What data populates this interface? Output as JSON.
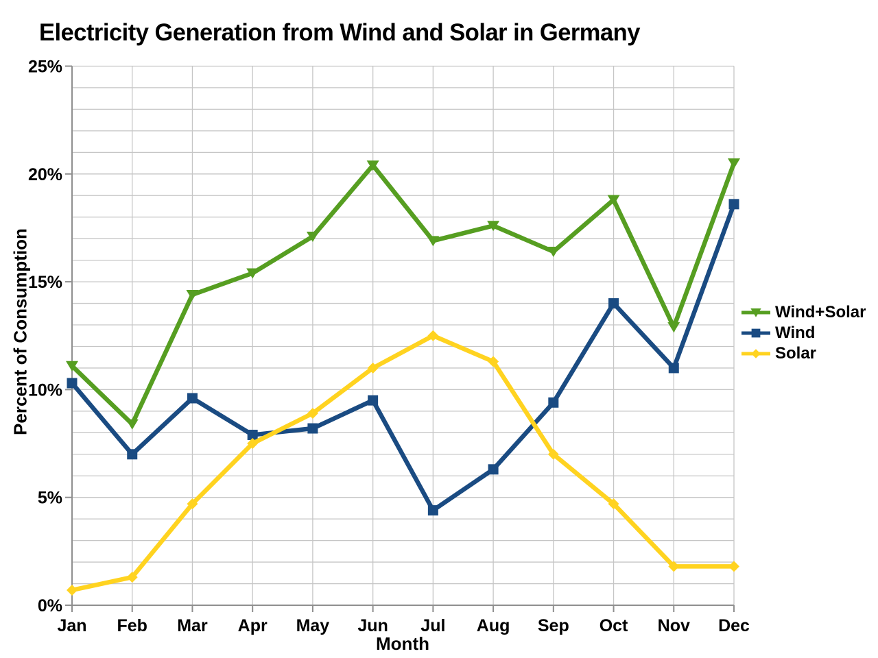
{
  "title": "Electricity Generation from Wind and Solar in Germany",
  "colors": {
    "wind_solar_green": "#569E21",
    "wind_blue": "#1A4B82",
    "solar_yellow": "#FFD320",
    "gridline": "#C6C6C6",
    "axis": "#8F8F8F",
    "text": "#000000",
    "background": "#FFFFFF"
  },
  "chart_data": {
    "type": "line",
    "title": "Electricity Generation from Wind and Solar in Germany",
    "xlabel": "Month",
    "ylabel": "Percent of Consumption",
    "categories": [
      "Jan",
      "Feb",
      "Mar",
      "Apr",
      "May",
      "Jun",
      "Jul",
      "Aug",
      "Sep",
      "Oct",
      "Nov",
      "Dec"
    ],
    "y_tick_labels": [
      "0%",
      "5%",
      "10%",
      "15%",
      "20%",
      "25%"
    ],
    "y_tick_values": [
      0,
      5,
      10,
      15,
      20,
      25
    ],
    "ylim": [
      0,
      25
    ],
    "grid": {
      "horizontal_minor_step_percent": 1,
      "vertical_per_month": true,
      "on": true
    },
    "legend_position": "right",
    "series": [
      {
        "name": "Wind+Solar",
        "color": "#569E21",
        "marker": "triangle-down",
        "values": [
          11.1,
          8.4,
          14.4,
          15.4,
          17.1,
          20.4,
          16.9,
          17.6,
          16.4,
          18.8,
          12.9,
          20.5
        ]
      },
      {
        "name": "Wind",
        "color": "#1A4B82",
        "marker": "square",
        "values": [
          10.3,
          7.0,
          9.6,
          7.9,
          8.2,
          9.5,
          4.4,
          6.3,
          9.4,
          14.0,
          11.0,
          18.6
        ]
      },
      {
        "name": "Solar",
        "color": "#FFD320",
        "marker": "diamond",
        "values": [
          0.7,
          1.3,
          4.7,
          7.5,
          8.9,
          11.0,
          12.5,
          11.3,
          7.0,
          4.7,
          1.8,
          1.8
        ]
      }
    ]
  }
}
